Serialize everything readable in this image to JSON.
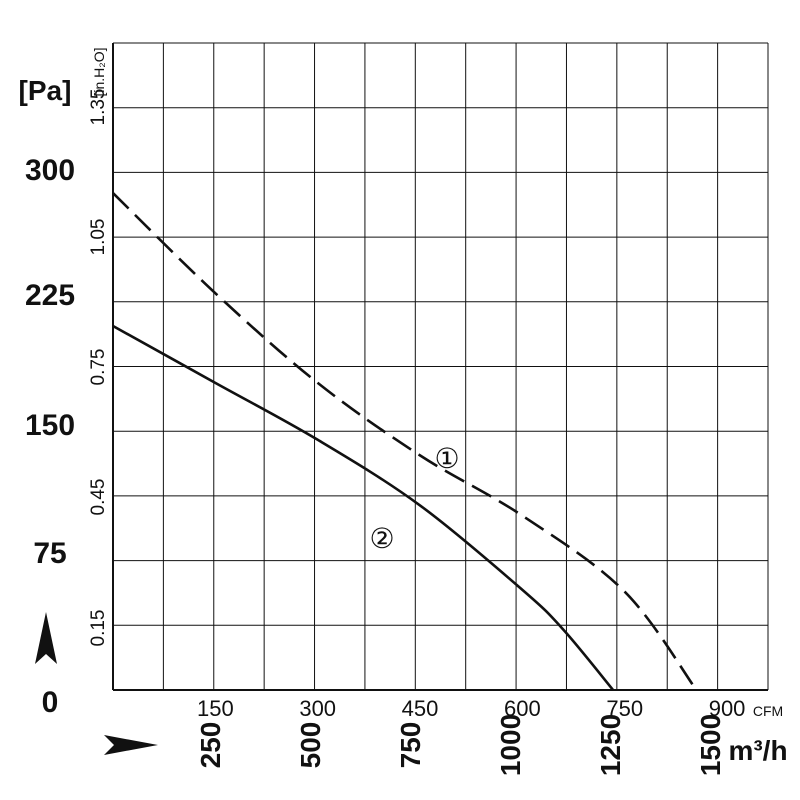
{
  "chart_data": {
    "type": "line",
    "title": "",
    "x_axes": {
      "cfm": {
        "unit": "CFM",
        "ticks": [
          "150",
          "300",
          "450",
          "600",
          "750",
          "900"
        ],
        "range": [
          0,
          960
        ]
      },
      "m3h": {
        "unit": "m³/h",
        "ticks": [
          "250",
          "500",
          "750",
          "1000",
          "1250",
          "1500"
        ]
      }
    },
    "y_axes": {
      "pa": {
        "unit": "[Pa]",
        "ticks": [
          "0",
          "75",
          "150",
          "225",
          "300"
        ],
        "range": [
          0,
          375
        ]
      },
      "inh2o": {
        "unit": "[in.H₂O]",
        "ticks": [
          "0.15",
          "0.45",
          "0.75",
          "1.05",
          "1.35"
        ]
      }
    },
    "grid": true,
    "series": [
      {
        "name": "①",
        "style": "dashed",
        "x_cfm": [
          0,
          150,
          300,
          450,
          600,
          750,
          855
        ],
        "y_pa": [
          288,
          230,
          178,
          136,
          101,
          57,
          0
        ]
      },
      {
        "name": "②",
        "style": "solid",
        "x_cfm": [
          0,
          150,
          300,
          450,
          600,
          660,
          733
        ],
        "y_pa": [
          211,
          178,
          145,
          107,
          58,
          35,
          0
        ]
      }
    ]
  }
}
